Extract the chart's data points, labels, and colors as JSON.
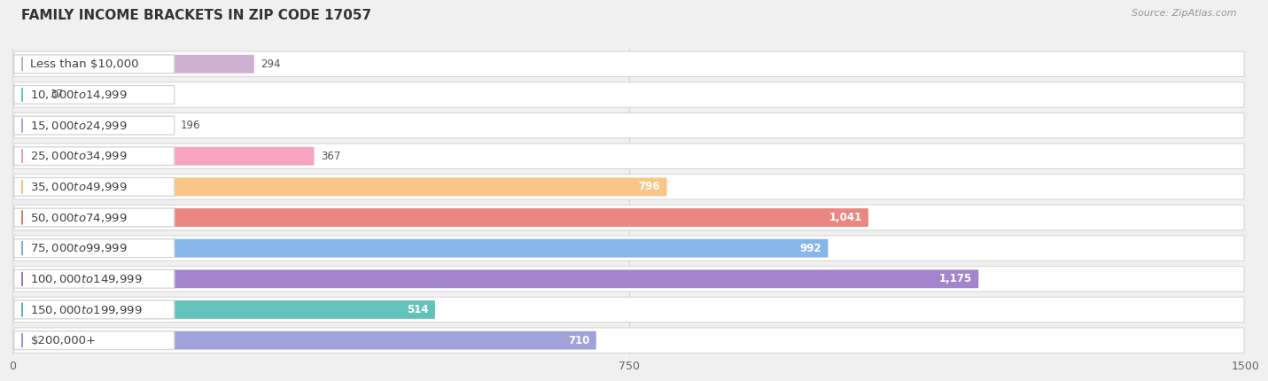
{
  "title": "FAMILY INCOME BRACKETS IN ZIP CODE 17057",
  "source": "Source: ZipAtlas.com",
  "categories": [
    "Less than $10,000",
    "$10,000 to $14,999",
    "$15,000 to $24,999",
    "$25,000 to $34,999",
    "$35,000 to $49,999",
    "$50,000 to $74,999",
    "$75,000 to $99,999",
    "$100,000 to $149,999",
    "$150,000 to $199,999",
    "$200,000+"
  ],
  "values": [
    294,
    37,
    196,
    367,
    796,
    1041,
    992,
    1175,
    514,
    710
  ],
  "bar_colors": [
    "#c9a6cc",
    "#5ec8c4",
    "#a8a6d8",
    "#f79ab8",
    "#f9c07a",
    "#e87a72",
    "#7aaee8",
    "#9a78c8",
    "#52bcb4",
    "#9898d8"
  ],
  "xlim": [
    0,
    1500
  ],
  "xticks": [
    0,
    750,
    1500
  ],
  "fig_bg": "#f0f0f0",
  "row_bg": "#ffffff",
  "row_border": "#d8d8d8",
  "grid_color": "#d8d8d8",
  "title_fontsize": 11,
  "label_fontsize": 9.5,
  "value_fontsize": 8.5,
  "source_fontsize": 8,
  "value_threshold": 500
}
